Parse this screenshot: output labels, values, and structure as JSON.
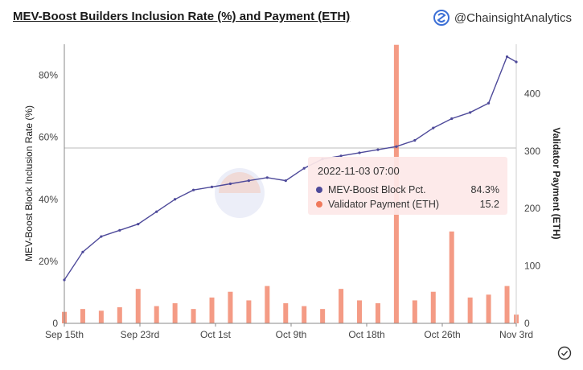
{
  "header": {
    "title": "MEV-Boost Builders Inclusion Rate (%) and Payment (ETH)",
    "brand": "@ChainsightAnalytics"
  },
  "tooltip": {
    "time": "2022-11-03 07:00",
    "rows": [
      {
        "label": "MEV-Boost Block Pct.",
        "value": "84.3%",
        "color": "#4e4a9a"
      },
      {
        "label": "Validator Payment (ETH)",
        "value": "15.2",
        "color": "#f07a5c"
      }
    ]
  },
  "chart_data": {
    "type": "line",
    "ylabel": "MEV-Boost Block Inclusion Rate (%)",
    "y2label": "Validator Payment (ETH)",
    "x_ticks": [
      "Sep 15th",
      "Sep 23rd",
      "Oct 1st",
      "Oct 9th",
      "Oct 18th",
      "Oct 26th",
      "Nov 3rd"
    ],
    "x_range": [
      "2022-09-15",
      "2022-11-03"
    ],
    "y_ticks": [
      "0",
      "20%",
      "40%",
      "60%",
      "80%"
    ],
    "ylim": [
      0,
      90
    ],
    "y2_ticks": [
      "0",
      "100",
      "200",
      "300",
      "400"
    ],
    "y2lim": [
      0,
      486
    ],
    "grid": false,
    "series": [
      {
        "name": "MEV-Boost Block Pct.",
        "axis": "left",
        "color": "#4e4a9a",
        "x": [
          "2022-09-15",
          "2022-09-17",
          "2022-09-19",
          "2022-09-21",
          "2022-09-23",
          "2022-09-25",
          "2022-09-27",
          "2022-09-29",
          "2022-10-01",
          "2022-10-03",
          "2022-10-05",
          "2022-10-07",
          "2022-10-09",
          "2022-10-11",
          "2022-10-13",
          "2022-10-15",
          "2022-10-17",
          "2022-10-19",
          "2022-10-21",
          "2022-10-23",
          "2022-10-25",
          "2022-10-27",
          "2022-10-29",
          "2022-10-31",
          "2022-11-02",
          "2022-11-03"
        ],
        "values": [
          14,
          23,
          28,
          30,
          32,
          36,
          40,
          43,
          44,
          45,
          46,
          47,
          46,
          50,
          53,
          54,
          55,
          56,
          57,
          59,
          63,
          66,
          68,
          71,
          86,
          84.3
        ]
      },
      {
        "name": "Validator Payment (ETH)",
        "axis": "right",
        "color": "#f07a5c",
        "x": [
          "2022-09-15",
          "2022-09-17",
          "2022-09-19",
          "2022-09-21",
          "2022-09-23",
          "2022-09-25",
          "2022-09-27",
          "2022-09-29",
          "2022-10-01",
          "2022-10-03",
          "2022-10-05",
          "2022-10-07",
          "2022-10-09",
          "2022-10-11",
          "2022-10-13",
          "2022-10-15",
          "2022-10-17",
          "2022-10-19",
          "2022-10-21",
          "2022-10-23",
          "2022-10-25",
          "2022-10-27",
          "2022-10-29",
          "2022-10-31",
          "2022-11-02",
          "2022-11-03"
        ],
        "values": [
          20,
          25,
          22,
          28,
          60,
          30,
          35,
          25,
          45,
          55,
          40,
          65,
          35,
          30,
          25,
          60,
          40,
          35,
          485,
          40,
          55,
          160,
          45,
          50,
          65,
          15.2
        ]
      }
    ]
  }
}
